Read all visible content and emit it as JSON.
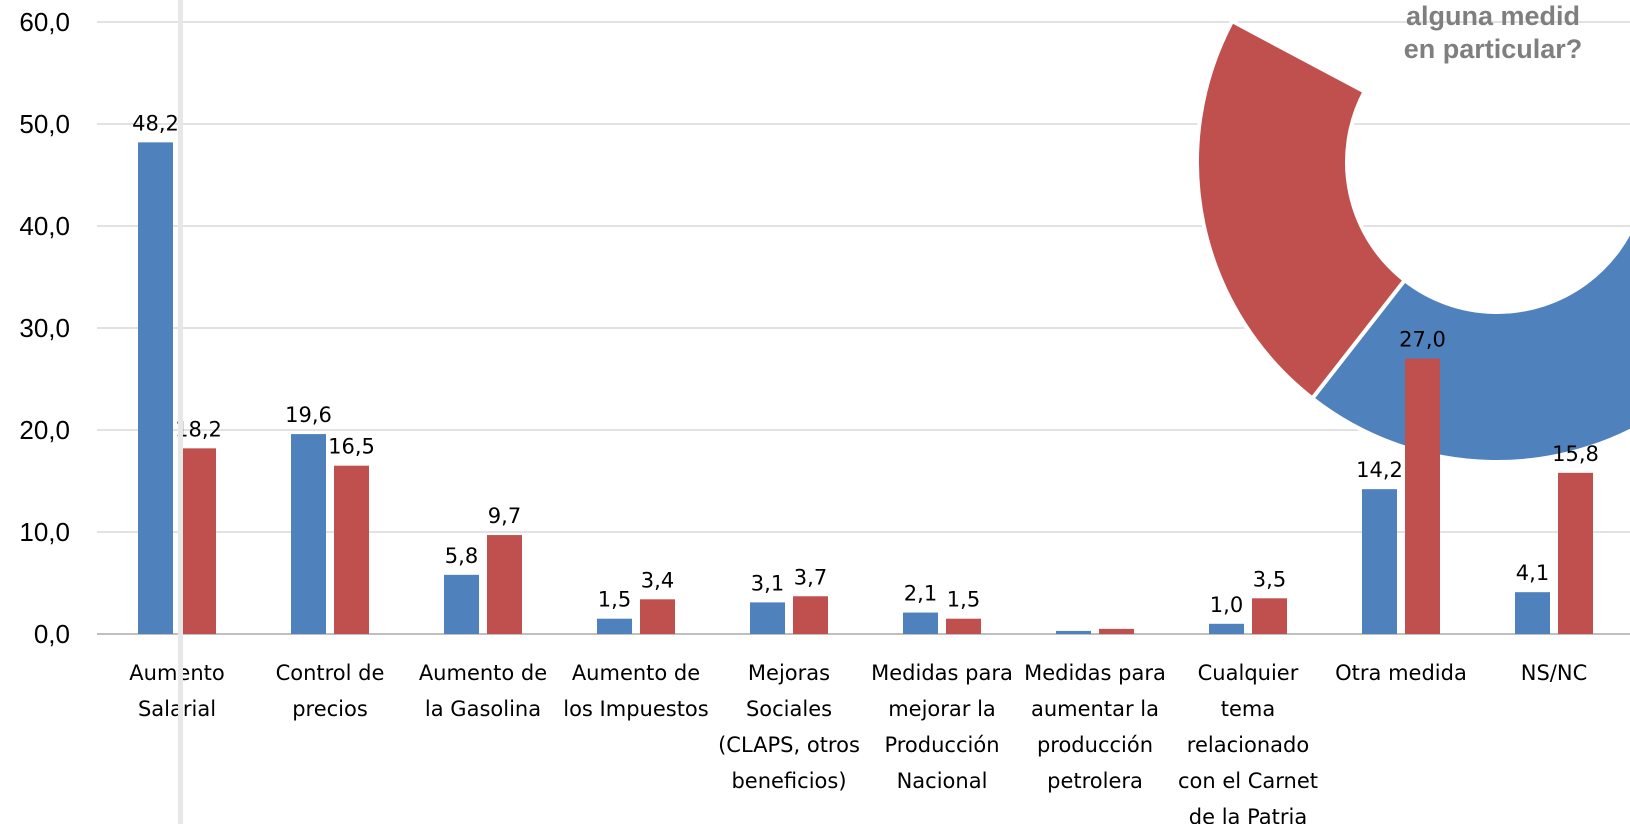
{
  "chart_data": {
    "type": "bar",
    "categories": [
      [
        "Aumento",
        "Salarial"
      ],
      [
        "Control de",
        "precios"
      ],
      [
        "Aumento de",
        "la Gasolina"
      ],
      [
        "Aumento de",
        "los Impuestos"
      ],
      [
        "Mejoras",
        "Sociales",
        "(CLAPS, otros",
        "beneficios)"
      ],
      [
        "Medidas para",
        "mejorar la",
        "Producción",
        "Nacional"
      ],
      [
        "Medidas para",
        "aumentar la",
        "producción",
        "petrolera"
      ],
      [
        "Cualquier",
        "tema",
        "relacionado",
        "con el Carnet",
        "de la Patria"
      ],
      [
        "Otra medida"
      ],
      [
        "NS/NC"
      ]
    ],
    "series": [
      {
        "color": "#4f81bd",
        "values": [
          48.2,
          19.6,
          5.8,
          1.5,
          3.1,
          2.1,
          0.3,
          1.0,
          14.2,
          4.1
        ],
        "labels": [
          "48,2",
          "19,6",
          "5,8",
          "1,5",
          "3,1",
          "2,1",
          "",
          "1,0",
          "14,2",
          "4,1"
        ]
      },
      {
        "color": "#c0504d",
        "values": [
          18.2,
          16.5,
          9.7,
          3.4,
          3.7,
          1.5,
          0.5,
          3.5,
          27.0,
          15.8
        ],
        "labels": [
          "18,2",
          "16,5",
          "9,7",
          "3,4",
          "3,7",
          "1,5",
          "",
          "3,5",
          "27,0",
          "15,8"
        ]
      }
    ],
    "ylim": [
      0,
      60
    ],
    "yticks": [
      "0,0",
      "10,0",
      "20,0",
      "30,0",
      "40,0",
      "50,0",
      "60,0"
    ],
    "grid": true
  },
  "donut": {
    "text_lines": [
      "alguna medid",
      "en particular?"
    ],
    "colors": {
      "red": "#c0504d",
      "blue": "#4f81bd"
    }
  }
}
